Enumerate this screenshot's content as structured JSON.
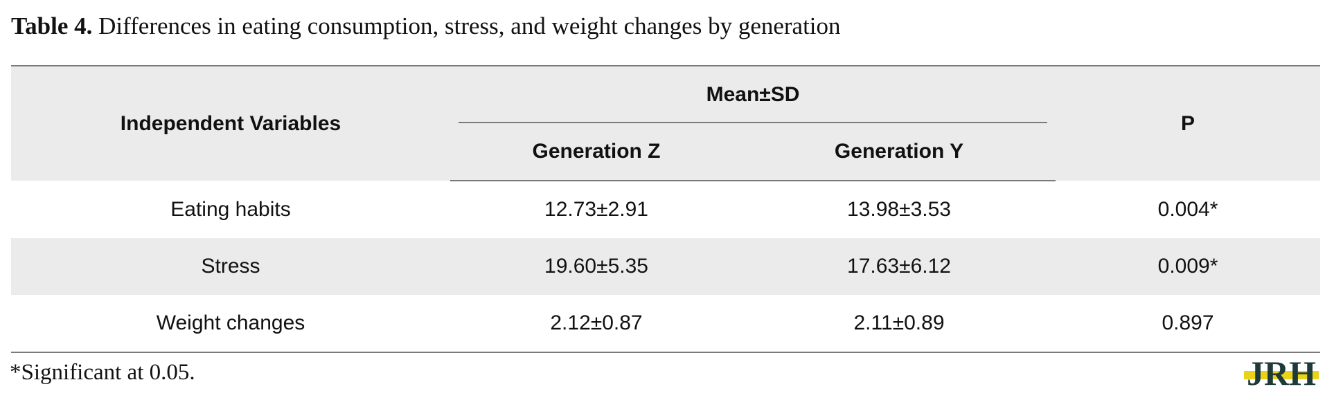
{
  "caption": {
    "label": "Table 4.",
    "text": " Differences in eating consumption, stress, and weight changes by generation"
  },
  "table": {
    "header": {
      "independent_variables": "Independent Variables",
      "mean_sd": "Mean±SD",
      "generation_z": "Generation Z",
      "generation_y": "Generation Y",
      "p": "P"
    },
    "rows": [
      {
        "variable": "Eating habits",
        "gen_z": "12.73±2.91",
        "gen_y": "13.98±3.53",
        "p": "0.004*"
      },
      {
        "variable": "Stress",
        "gen_z": "19.60±5.35",
        "gen_y": "17.63±6.12",
        "p": "0.009*"
      },
      {
        "variable": "Weight changes",
        "gen_z": "2.12±0.87",
        "gen_y": "2.11±0.89",
        "p": "0.897"
      }
    ]
  },
  "footnote": "*Significant at 0.05.",
  "logo": {
    "text": "JRH",
    "colors": {
      "dark": "#1f3a3a",
      "accent": "#e8d21a"
    }
  }
}
